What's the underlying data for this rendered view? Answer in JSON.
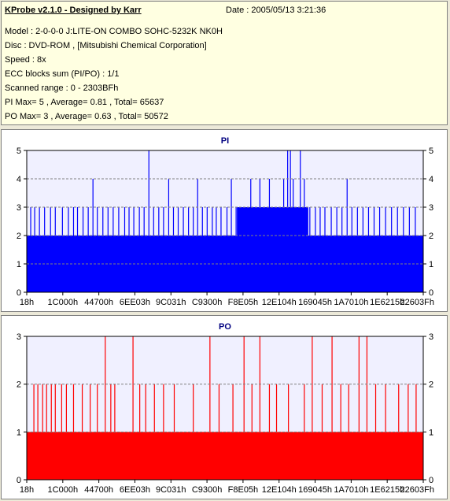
{
  "header": {
    "app_title": "KProbe v2.1.0 - Designed by Karr",
    "date": "Date : 2005/05/13 3:21:36",
    "lines": [
      "Model : 2-0-0-0 J:LITE-ON COMBO SOHC-5232K NK0H",
      "Disc : DVD-ROM ,  [Mitsubishi Chemical Corporation]",
      "Speed : 8x",
      "ECC blocks sum (PI/PO) : 1/1",
      "Scanned range : 0 - 2303BFh",
      "PI Max= 5 , Average= 0.81 , Total= 65637",
      "PO Max= 3 , Average= 0.63 , Total= 50572"
    ]
  },
  "colors": {
    "pi": "#0000ff",
    "po": "#ff0000",
    "grid": "#808080",
    "panel_bg": "#ffffff",
    "info_bg": "#ffffe1"
  },
  "chart_data": [
    {
      "type": "bar",
      "title": "PI",
      "ylim": [
        0,
        5
      ],
      "yticks": [
        0,
        1,
        2,
        3,
        4,
        5
      ],
      "xticks": [
        "18h",
        "1C000h",
        "44700h",
        "6EE03h",
        "9C031h",
        "C9300h",
        "F8E05h",
        "12E104h",
        "169045h",
        "1A7010h",
        "1E6215h",
        "22603Fh"
      ],
      "baseline": 2,
      "spikes": [
        {
          "x": 0.01,
          "v": 3
        },
        {
          "x": 0.02,
          "v": 3
        },
        {
          "x": 0.032,
          "v": 3
        },
        {
          "x": 0.045,
          "v": 3
        },
        {
          "x": 0.06,
          "v": 3
        },
        {
          "x": 0.072,
          "v": 3
        },
        {
          "x": 0.09,
          "v": 3
        },
        {
          "x": 0.105,
          "v": 3
        },
        {
          "x": 0.118,
          "v": 3
        },
        {
          "x": 0.128,
          "v": 3
        },
        {
          "x": 0.142,
          "v": 3
        },
        {
          "x": 0.155,
          "v": 3
        },
        {
          "x": 0.167,
          "v": 4
        },
        {
          "x": 0.178,
          "v": 3
        },
        {
          "x": 0.192,
          "v": 3
        },
        {
          "x": 0.205,
          "v": 3
        },
        {
          "x": 0.218,
          "v": 3
        },
        {
          "x": 0.232,
          "v": 3
        },
        {
          "x": 0.247,
          "v": 3
        },
        {
          "x": 0.258,
          "v": 3
        },
        {
          "x": 0.27,
          "v": 3
        },
        {
          "x": 0.284,
          "v": 3
        },
        {
          "x": 0.296,
          "v": 3
        },
        {
          "x": 0.308,
          "v": 5
        },
        {
          "x": 0.32,
          "v": 3
        },
        {
          "x": 0.333,
          "v": 3
        },
        {
          "x": 0.345,
          "v": 3
        },
        {
          "x": 0.358,
          "v": 4
        },
        {
          "x": 0.37,
          "v": 3
        },
        {
          "x": 0.382,
          "v": 3
        },
        {
          "x": 0.395,
          "v": 3
        },
        {
          "x": 0.408,
          "v": 3
        },
        {
          "x": 0.42,
          "v": 3
        },
        {
          "x": 0.431,
          "v": 4
        },
        {
          "x": 0.443,
          "v": 3
        },
        {
          "x": 0.455,
          "v": 3
        },
        {
          "x": 0.468,
          "v": 3
        },
        {
          "x": 0.478,
          "v": 3
        },
        {
          "x": 0.49,
          "v": 3
        },
        {
          "x": 0.505,
          "v": 3
        },
        {
          "x": 0.516,
          "v": 4
        },
        {
          "x": 0.528,
          "v": 3
        },
        {
          "x": 0.54,
          "v": 3
        },
        {
          "x": 0.553,
          "v": 3
        },
        {
          "x": 0.565,
          "v": 4
        },
        {
          "x": 0.577,
          "v": 3
        },
        {
          "x": 0.588,
          "v": 4
        },
        {
          "x": 0.6,
          "v": 3
        },
        {
          "x": 0.612,
          "v": 4
        },
        {
          "x": 0.622,
          "v": 3
        },
        {
          "x": 0.634,
          "v": 3
        },
        {
          "x": 0.648,
          "v": 4
        },
        {
          "x": 0.658,
          "v": 5
        },
        {
          "x": 0.665,
          "v": 5
        },
        {
          "x": 0.672,
          "v": 4
        },
        {
          "x": 0.684,
          "v": 3
        },
        {
          "x": 0.69,
          "v": 5
        },
        {
          "x": 0.7,
          "v": 4
        },
        {
          "x": 0.714,
          "v": 3
        },
        {
          "x": 0.728,
          "v": 3
        },
        {
          "x": 0.74,
          "v": 3
        },
        {
          "x": 0.752,
          "v": 3
        },
        {
          "x": 0.768,
          "v": 3
        },
        {
          "x": 0.782,
          "v": 3
        },
        {
          "x": 0.795,
          "v": 3
        },
        {
          "x": 0.808,
          "v": 4
        },
        {
          "x": 0.82,
          "v": 3
        },
        {
          "x": 0.834,
          "v": 3
        },
        {
          "x": 0.848,
          "v": 3
        },
        {
          "x": 0.862,
          "v": 3
        },
        {
          "x": 0.876,
          "v": 3
        },
        {
          "x": 0.89,
          "v": 3
        },
        {
          "x": 0.905,
          "v": 3
        },
        {
          "x": 0.92,
          "v": 3
        },
        {
          "x": 0.935,
          "v": 3
        },
        {
          "x": 0.95,
          "v": 3
        },
        {
          "x": 0.965,
          "v": 3
        },
        {
          "x": 0.98,
          "v": 3
        }
      ],
      "dense_band": {
        "from": 0.53,
        "to": 0.71,
        "v": 3
      }
    },
    {
      "type": "bar",
      "title": "PO",
      "ylim": [
        0,
        3
      ],
      "yticks": [
        0,
        1,
        2,
        3
      ],
      "xticks": [
        "18h",
        "1C000h",
        "44700h",
        "6EE03h",
        "9C031h",
        "C9300h",
        "F8E05h",
        "12E104h",
        "169045h",
        "1A7010h",
        "1E6215h",
        "22603Fh"
      ],
      "baseline": 1,
      "spikes": [
        {
          "x": 0.018,
          "v": 2
        },
        {
          "x": 0.028,
          "v": 2
        },
        {
          "x": 0.04,
          "v": 2
        },
        {
          "x": 0.05,
          "v": 2
        },
        {
          "x": 0.062,
          "v": 2
        },
        {
          "x": 0.072,
          "v": 2
        },
        {
          "x": 0.088,
          "v": 2
        },
        {
          "x": 0.1,
          "v": 2
        },
        {
          "x": 0.118,
          "v": 2
        },
        {
          "x": 0.14,
          "v": 2
        },
        {
          "x": 0.16,
          "v": 2
        },
        {
          "x": 0.178,
          "v": 2
        },
        {
          "x": 0.198,
          "v": 3
        },
        {
          "x": 0.212,
          "v": 2
        },
        {
          "x": 0.222,
          "v": 2
        },
        {
          "x": 0.268,
          "v": 3
        },
        {
          "x": 0.285,
          "v": 2
        },
        {
          "x": 0.3,
          "v": 2
        },
        {
          "x": 0.322,
          "v": 2
        },
        {
          "x": 0.345,
          "v": 2
        },
        {
          "x": 0.372,
          "v": 2
        },
        {
          "x": 0.42,
          "v": 2
        },
        {
          "x": 0.462,
          "v": 3
        },
        {
          "x": 0.485,
          "v": 2
        },
        {
          "x": 0.52,
          "v": 2
        },
        {
          "x": 0.548,
          "v": 3
        },
        {
          "x": 0.568,
          "v": 2
        },
        {
          "x": 0.588,
          "v": 3
        },
        {
          "x": 0.612,
          "v": 2
        },
        {
          "x": 0.63,
          "v": 2
        },
        {
          "x": 0.66,
          "v": 2
        },
        {
          "x": 0.7,
          "v": 2
        },
        {
          "x": 0.72,
          "v": 3
        },
        {
          "x": 0.745,
          "v": 2
        },
        {
          "x": 0.77,
          "v": 3
        },
        {
          "x": 0.792,
          "v": 2
        },
        {
          "x": 0.812,
          "v": 2
        },
        {
          "x": 0.838,
          "v": 3
        },
        {
          "x": 0.858,
          "v": 3
        },
        {
          "x": 0.88,
          "v": 2
        },
        {
          "x": 0.905,
          "v": 2
        },
        {
          "x": 0.938,
          "v": 2
        },
        {
          "x": 0.962,
          "v": 2
        },
        {
          "x": 0.982,
          "v": 2
        }
      ],
      "dense_band": null
    }
  ]
}
